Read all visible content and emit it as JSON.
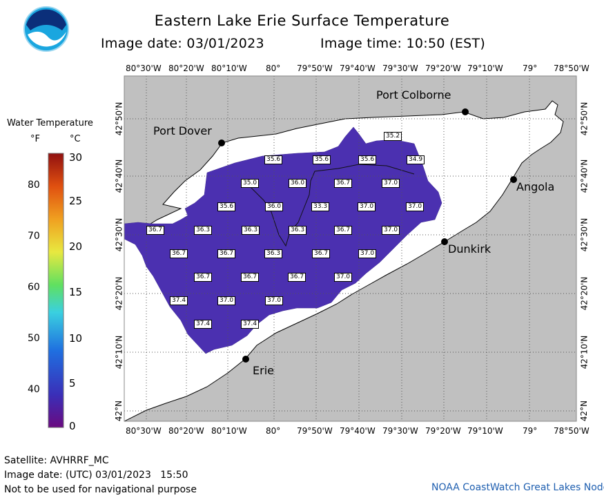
{
  "header": {
    "title": "Eastern Lake Erie Surface Temperature",
    "image_date": "Image date: 03/01/2023",
    "image_time": "Image time: 10:50 (EST)"
  },
  "logo": {
    "text": "NOAA"
  },
  "legend": {
    "title": "Water Temperature",
    "unit_f": "°F",
    "unit_c": "°C",
    "f_ticks": [
      "80",
      "70",
      "60",
      "50",
      "40"
    ],
    "c_ticks": [
      "30",
      "25",
      "20",
      "15",
      "10",
      "5",
      "0"
    ],
    "gradient_colors": [
      "#6a0a80",
      "#3a2fb8",
      "#1f6fe0",
      "#3ad0e0",
      "#60e060",
      "#e8e840",
      "#f0a020",
      "#e05010",
      "#901010"
    ]
  },
  "map": {
    "lon_labels": [
      "80°30'W",
      "80°20'W",
      "80°10'W",
      "80°",
      "79°50'W",
      "79°40'W",
      "79°30'W",
      "79°20'W",
      "79°10'W",
      "79°",
      "78°50'W"
    ],
    "lat_labels": [
      "42°50'N",
      "42°40'N",
      "42°30'N",
      "42°20'N",
      "42°10'N",
      "42°N"
    ],
    "colors": {
      "land": "#c0c0c0",
      "lake": "#ffffff",
      "water_temp": "#4b30b0",
      "grid": "#555555"
    },
    "places": [
      {
        "name": "Port Colborne"
      },
      {
        "name": "Port Dover"
      },
      {
        "name": "Angola"
      },
      {
        "name": "Dunkirk"
      },
      {
        "name": "Erie"
      }
    ],
    "temperature_labels": [
      "35.2",
      "35.6",
      "35.6",
      "35.6",
      "34.9",
      "35.0",
      "36.0",
      "36.7",
      "37.0",
      "35.6",
      "36.0",
      "33.3",
      "37.0",
      "37.0",
      "36.7",
      "36.3",
      "36.3",
      "36.3",
      "36.7",
      "37.0",
      "36.7",
      "36.7",
      "36.3",
      "36.7",
      "37.0",
      "36.7",
      "36.7",
      "36.7",
      "37.0",
      "37.4",
      "37.0",
      "37.0",
      "37.4",
      "37.4"
    ]
  },
  "footer": {
    "satellite": "Satellite: AVHRRF_MC",
    "utc_date": "Image date: (UTC) 03/01/2023   15:50",
    "disclaimer": "Not to be used for navigational purpose",
    "node": "NOAA CoastWatch Great Lakes Node"
  }
}
